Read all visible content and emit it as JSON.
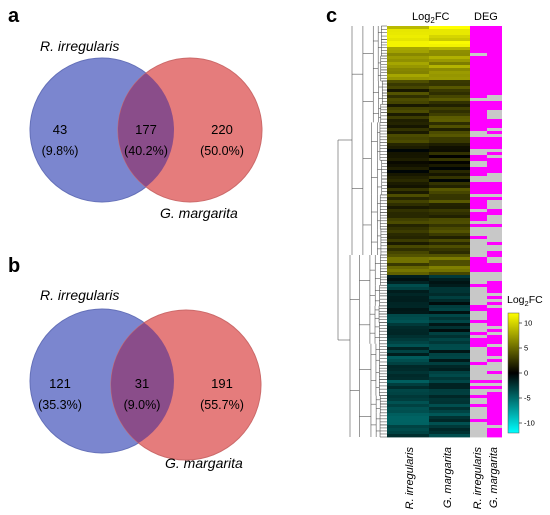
{
  "colors": {
    "set1_fill": "#7b86cf",
    "set2_fill": "#e57c7c",
    "overlap_fill": "#8a4d8a",
    "deg_yes": "#ff00ff",
    "deg_no": "#c8c8c8",
    "heat_high": "#ffff00",
    "heat_mid": "#000000",
    "heat_low": "#00ffff"
  },
  "venn_a": {
    "letter": "a",
    "set1_label": "R. irregularis",
    "set2_label": "G. margarita",
    "left_count": "43",
    "left_pct": "(9.8%)",
    "overlap_count": "177",
    "overlap_pct": "(40.2%)",
    "right_count": "220",
    "right_pct": "(50.0%)"
  },
  "venn_b": {
    "letter": "b",
    "set1_label": "R. irregularis",
    "set2_label": "G. margarita",
    "left_count": "121",
    "left_pct": "(35.3%)",
    "overlap_count": "31",
    "overlap_pct": "(9.0%)",
    "right_count": "191",
    "right_pct": "(55.7%)"
  },
  "heatmap": {
    "letter": "c",
    "log2fc_header_base": "Log",
    "log2fc_header_sub": "2",
    "log2fc_header_suffix": "FC",
    "deg_header": "DEG",
    "log2fc_columns": [
      "R. irregularis",
      "G. margarita"
    ],
    "deg_columns": [
      "R. irregularis",
      "G. margarita"
    ]
  },
  "legend": {
    "title_base": "Log",
    "title_sub": "2",
    "title_suffix": "FC",
    "ticks": [
      "10",
      "5",
      "0",
      "-5",
      "-10"
    ],
    "range": [
      -12,
      12
    ]
  }
}
